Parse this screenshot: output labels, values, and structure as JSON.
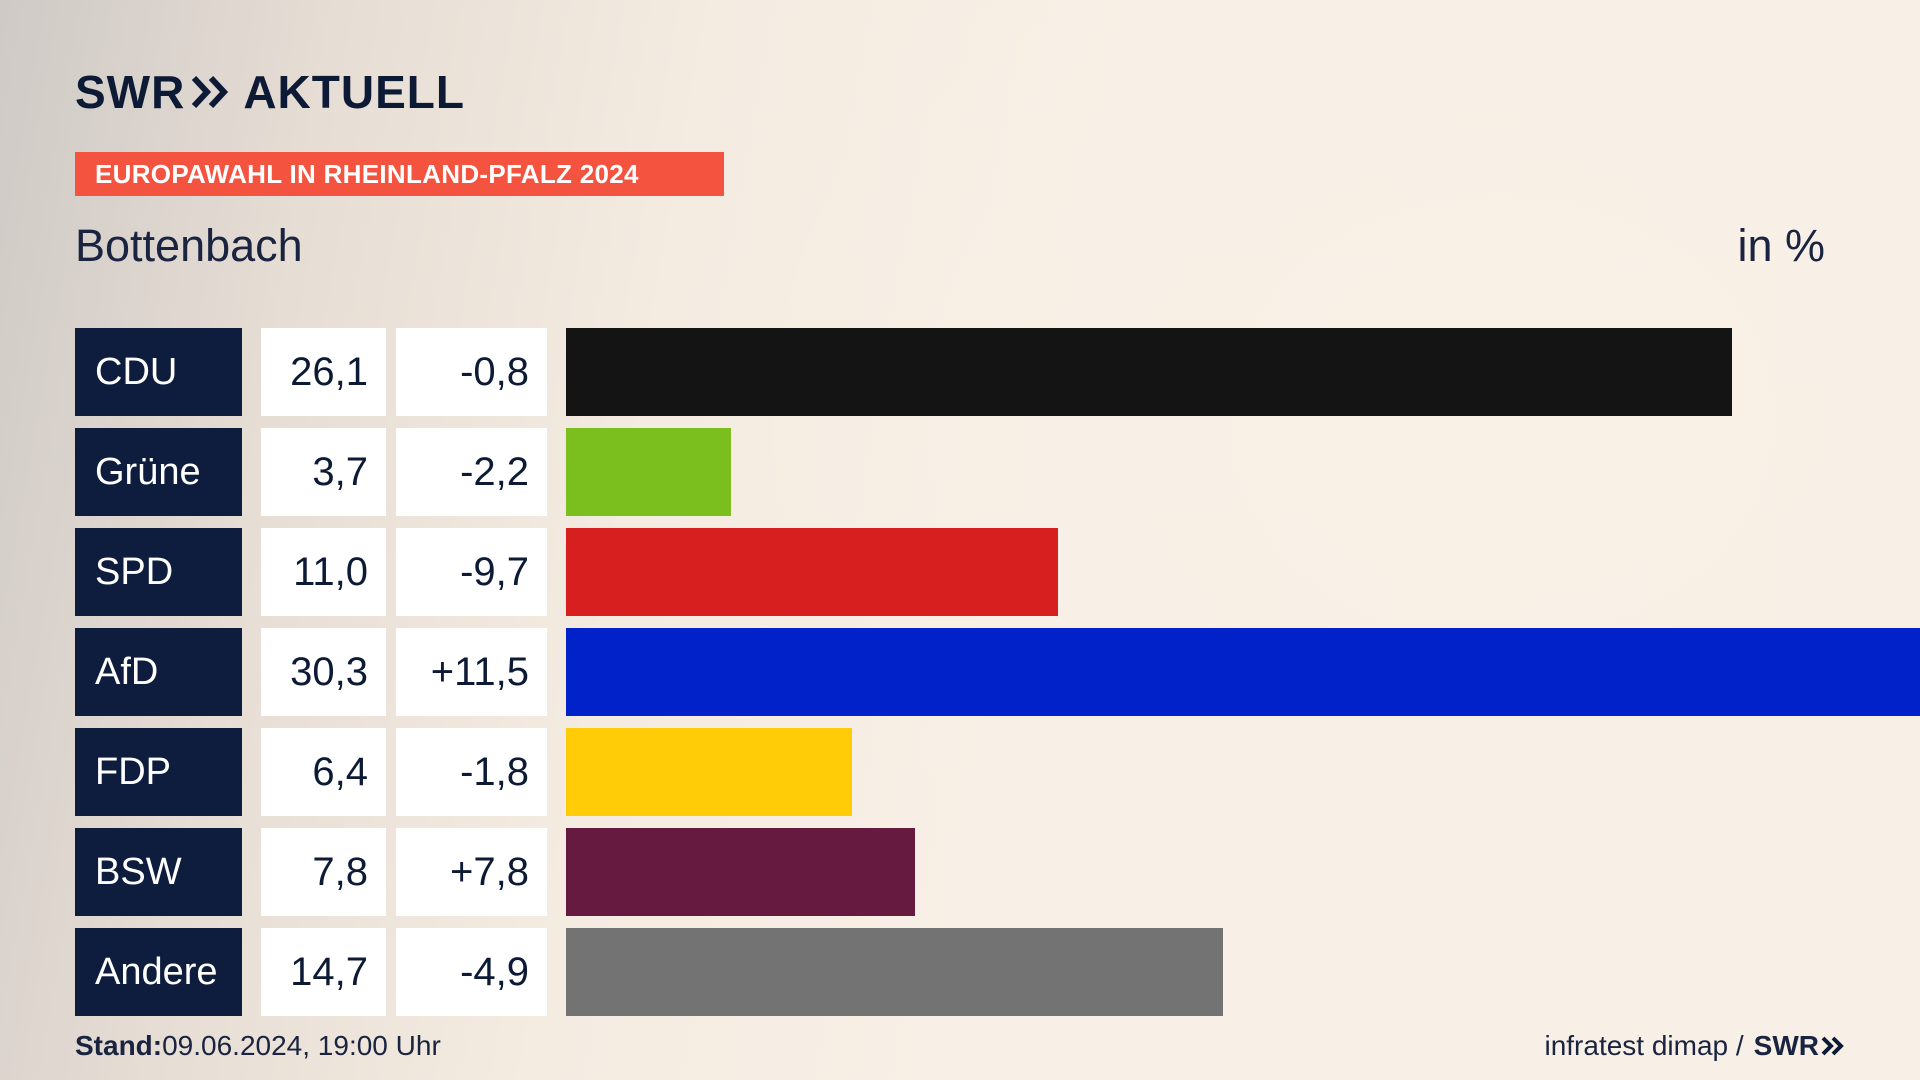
{
  "brand": {
    "name": "SWR",
    "section": "AKTUELL"
  },
  "banner": "EUROPAWAHL IN RHEINLAND-PFALZ 2024",
  "place": "Bottenbach",
  "unit": "in %",
  "chart_data": {
    "type": "bar",
    "orientation": "horizontal",
    "categories": [
      "CDU",
      "Grüne",
      "SPD",
      "AfD",
      "FDP",
      "BSW",
      "Andere"
    ],
    "values": [
      26.1,
      3.7,
      11.0,
      30.3,
      6.4,
      7.8,
      14.7
    ],
    "value_labels": [
      "26,1",
      "3,7",
      "11,0",
      "30,3",
      "6,4",
      "7,8",
      "14,7"
    ],
    "diff_labels": [
      "-0,8",
      "-2,2",
      "-9,7",
      "+11,5",
      "-1,8",
      "+7,8",
      "-4,9"
    ],
    "colors": [
      "#141414",
      "#7abf1e",
      "#d81f1f",
      "#0022c8",
      "#ffcc07",
      "#661a3f",
      "#737373"
    ],
    "xlim": [
      0,
      30.3
    ]
  },
  "footer": {
    "stand_label": "Stand:",
    "stand_value": "09.06.2024, 19:00 Uhr",
    "source": "infratest dimap /",
    "source_logo": "SWR"
  }
}
